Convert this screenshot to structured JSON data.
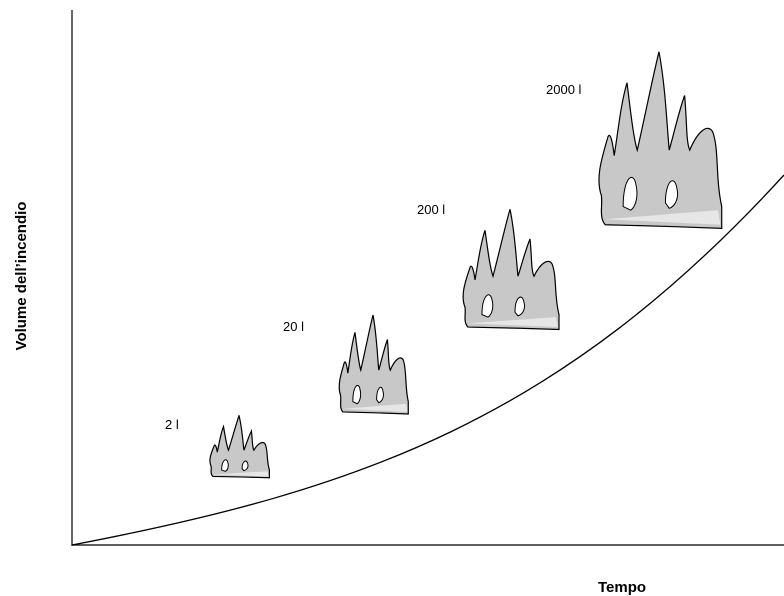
{
  "diagram": {
    "y_axis_label": "Volume dell’incendio",
    "x_axis_label": "Tempo",
    "labels": [
      "2 l",
      "20 l",
      "200 l",
      "2000 l"
    ]
  }
}
